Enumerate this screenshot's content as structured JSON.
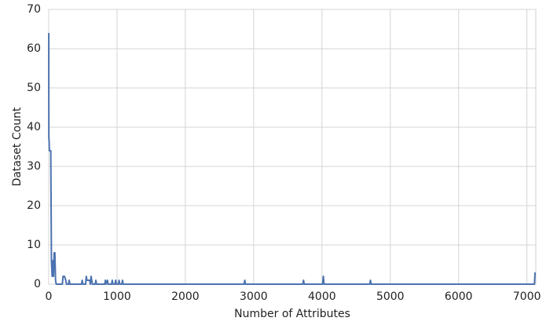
{
  "chart_data": {
    "type": "line",
    "xlabel": "Number of Attributes",
    "ylabel": "Dataset Count",
    "x": [
      1,
      2,
      5,
      10,
      20,
      30,
      40,
      50,
      60,
      70,
      80,
      90,
      100,
      110,
      200,
      210,
      230,
      250,
      260,
      290,
      300,
      310,
      480,
      490,
      500,
      540,
      550,
      560,
      570,
      600,
      610,
      620,
      630,
      640,
      680,
      690,
      700,
      820,
      830,
      840,
      860,
      870,
      920,
      930,
      940,
      970,
      980,
      990,
      1020,
      1030,
      1040,
      1070,
      1080,
      1090,
      2860,
      2870,
      2880,
      3720,
      3730,
      3740,
      4010,
      4020,
      4030,
      4700,
      4710,
      4720,
      7110,
      7120
    ],
    "series": [
      {
        "color": "#4c72b0",
        "values": [
          64,
          37,
          37,
          34,
          34,
          34,
          6,
          2,
          6,
          2,
          8,
          8,
          1,
          0,
          0,
          2,
          2,
          1,
          0,
          0,
          1,
          0,
          0,
          1,
          0,
          0,
          2,
          1,
          1,
          1,
          0,
          2,
          1,
          0,
          0,
          1,
          0,
          0,
          1,
          0,
          1,
          0,
          0,
          1,
          0,
          0,
          1,
          0,
          0,
          1,
          0,
          0,
          1,
          0,
          0,
          1,
          0,
          0,
          1,
          0,
          0,
          2,
          0,
          0,
          1,
          0,
          0,
          3
        ]
      }
    ],
    "xlim": [
      0,
      7130
    ],
    "ylim": [
      0,
      70
    ],
    "xticks": [
      0,
      1000,
      2000,
      3000,
      4000,
      5000,
      6000,
      7000
    ],
    "yticks": [
      0,
      10,
      20,
      30,
      40,
      50,
      60,
      70
    ],
    "grid": true
  }
}
